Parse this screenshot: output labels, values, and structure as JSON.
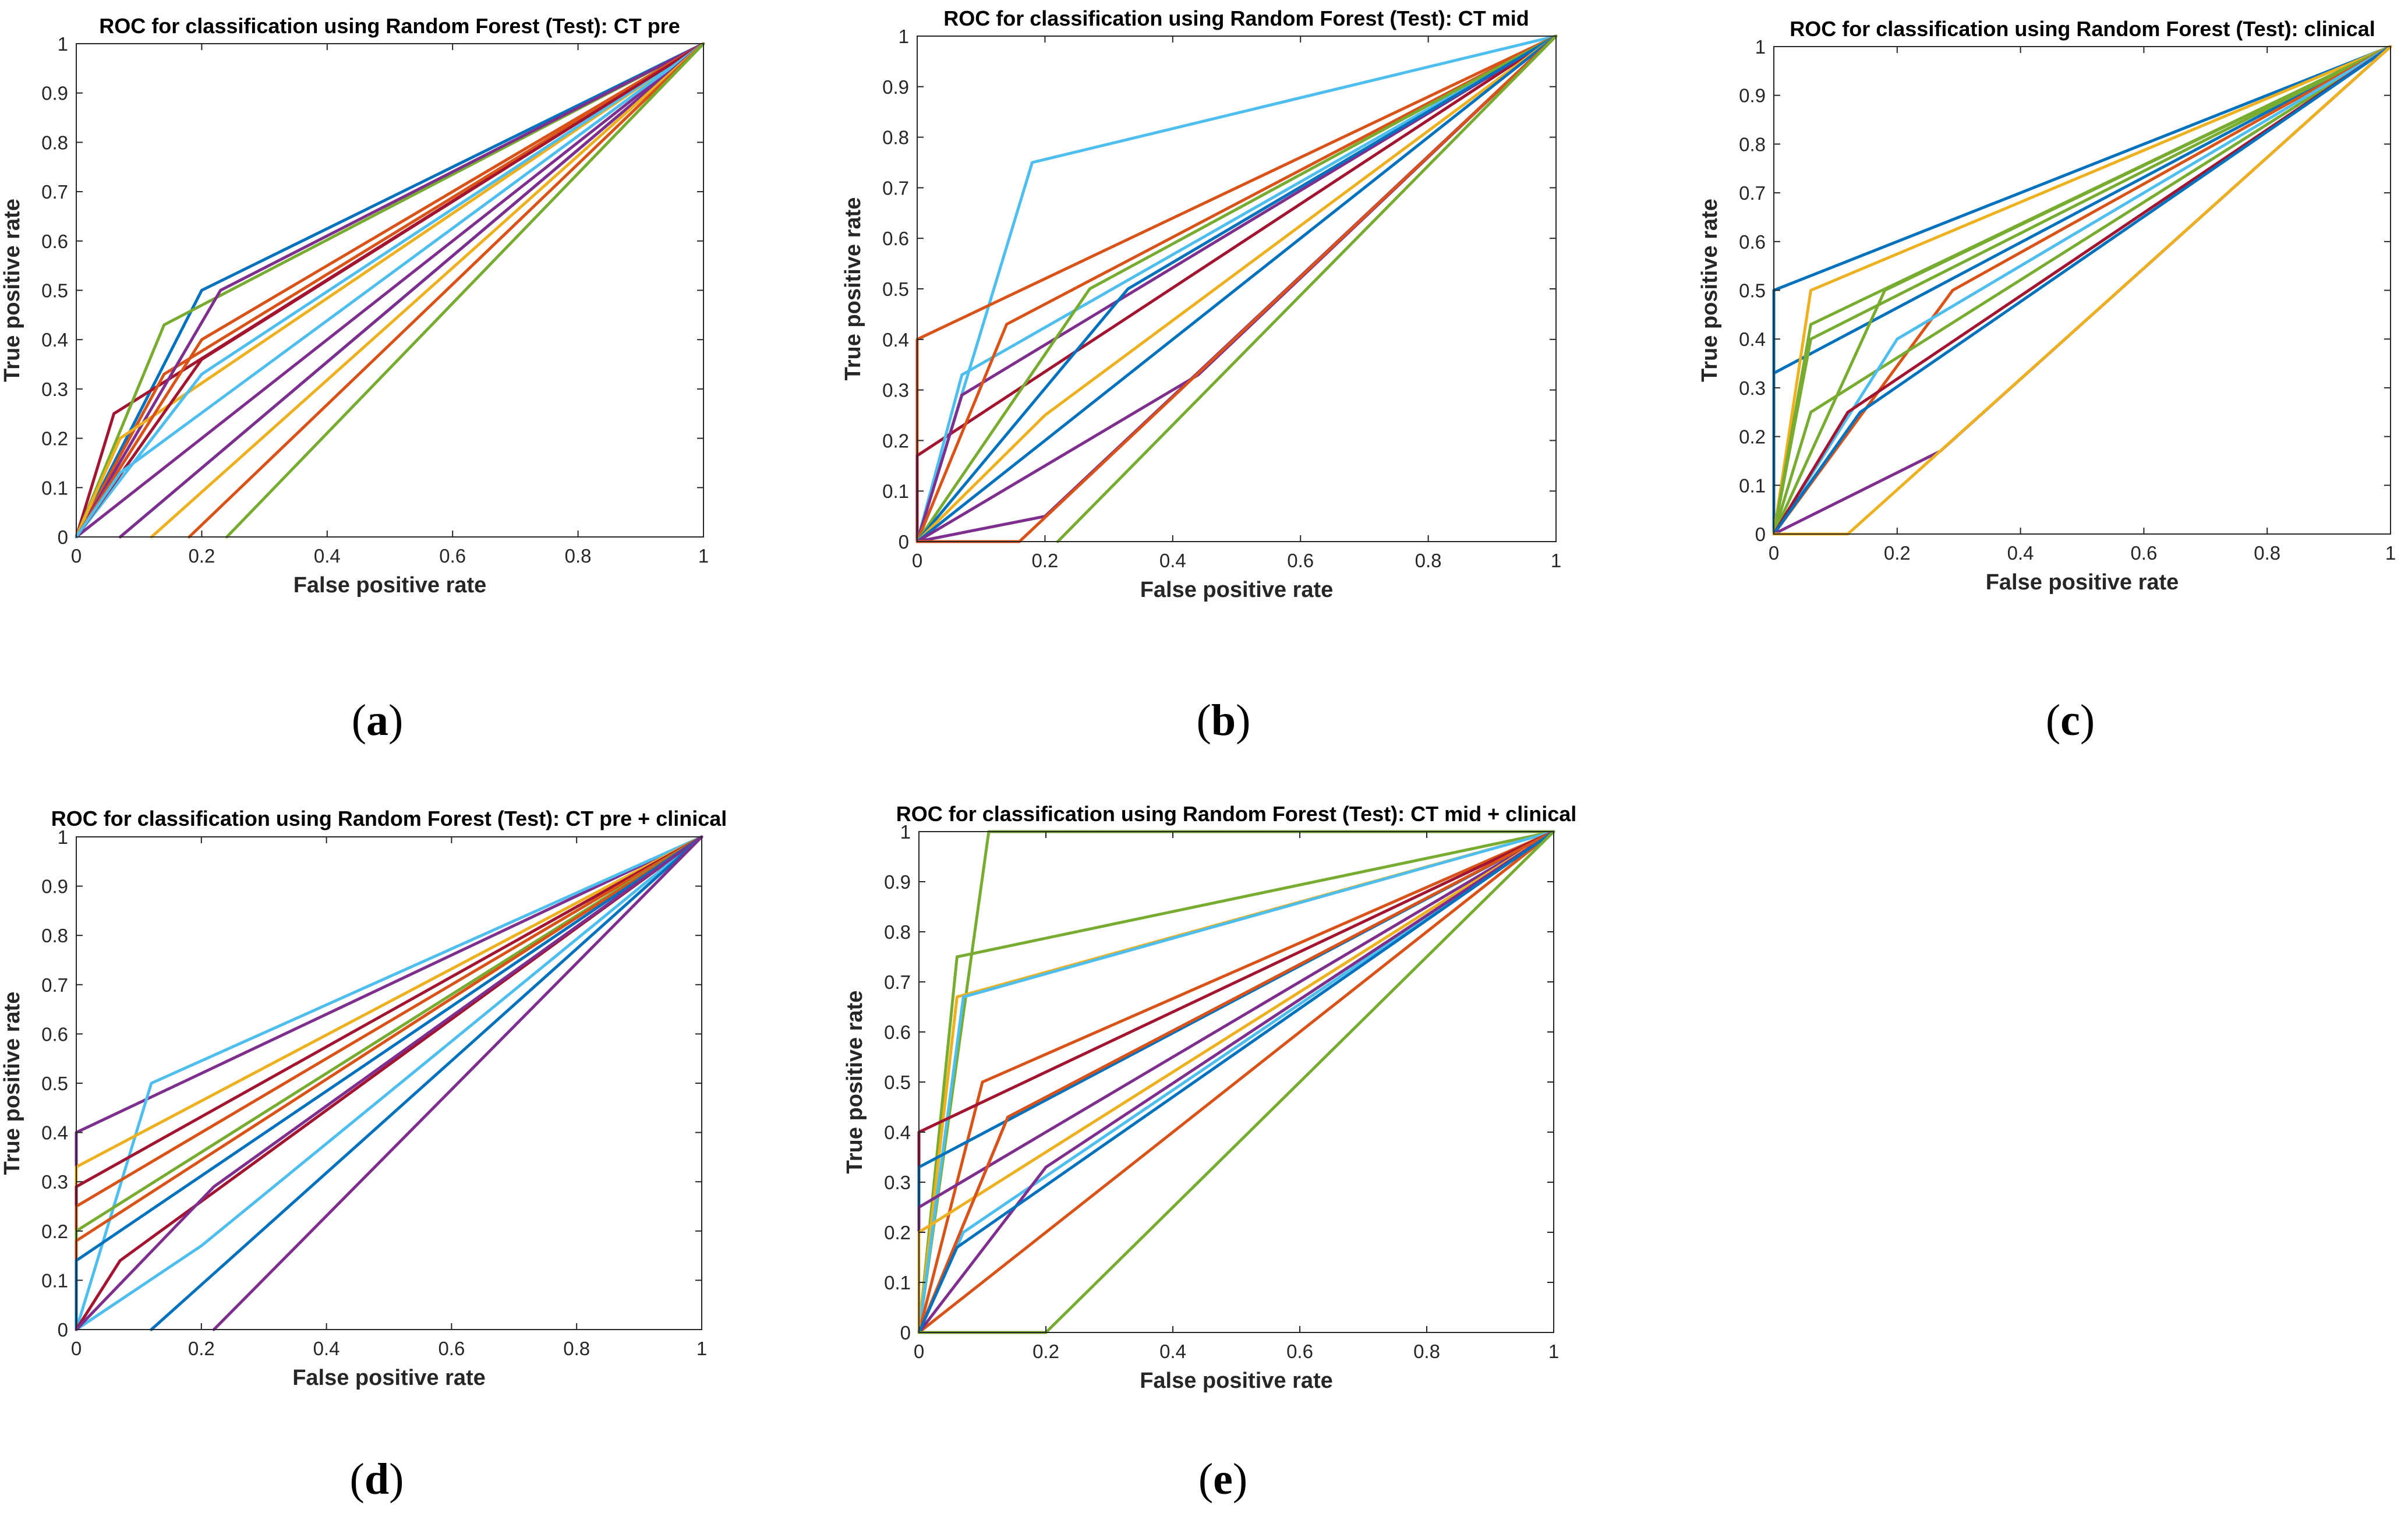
{
  "colors": [
    "#0072BD",
    "#D95319",
    "#EDB120",
    "#7E2F8E",
    "#77AC30",
    "#4DBEEE",
    "#A2142F"
  ],
  "chart_data": [
    {
      "type": "line",
      "title": "ROC for classification using Random Forest (Test): CT pre",
      "xlabel": "False positive rate",
      "ylabel": "True positive rate",
      "xlim": [
        0,
        1
      ],
      "ylim": [
        0,
        1
      ],
      "xticks": [
        "0",
        "0.2",
        "0.4",
        "0.6",
        "0.8",
        "1"
      ],
      "yticks": [
        "0",
        "0.1",
        "0.2",
        "0.3",
        "0.4",
        "0.5",
        "0.6",
        "0.7",
        "0.8",
        "0.9",
        "1"
      ],
      "grid": false,
      "caption": {
        "open": "(",
        "letter": "a",
        "close": ")"
      },
      "series": [
        {
          "color": 0,
          "x": [
            0,
            0.2,
            1
          ],
          "y": [
            0,
            0.5,
            1
          ]
        },
        {
          "color": 6,
          "x": [
            0,
            0.06,
            1
          ],
          "y": [
            0,
            0.25,
            1
          ]
        },
        {
          "color": 4,
          "x": [
            0,
            0.14,
            1
          ],
          "y": [
            0,
            0.43,
            1
          ]
        },
        {
          "color": 1,
          "x": [
            0,
            0.14,
            1
          ],
          "y": [
            0,
            0.33,
            1
          ]
        },
        {
          "color": 3,
          "x": [
            0,
            0.23,
            1
          ],
          "y": [
            0,
            0.5,
            1
          ]
        },
        {
          "color": 2,
          "x": [
            0,
            0.07,
            1
          ],
          "y": [
            0,
            0.2,
            1
          ]
        },
        {
          "color": 5,
          "x": [
            0,
            0.2,
            1
          ],
          "y": [
            0,
            0.33,
            1
          ]
        },
        {
          "color": 1,
          "x": [
            0,
            0.2,
            1
          ],
          "y": [
            0,
            0.4,
            1
          ]
        },
        {
          "color": 3,
          "x": [
            0,
            0.2,
            1
          ],
          "y": [
            0,
            0.2,
            1
          ]
        },
        {
          "color": 6,
          "x": [
            0,
            0.2,
            1
          ],
          "y": [
            0,
            0.36,
            1
          ]
        },
        {
          "color": 5,
          "x": [
            0,
            0.07,
            1
          ],
          "y": [
            0,
            0.13,
            1
          ]
        },
        {
          "color": 0,
          "x": [
            0.07,
            1
          ],
          "y": [
            0,
            1
          ]
        },
        {
          "color": 3,
          "x": [
            0.07,
            1
          ],
          "y": [
            0,
            1
          ]
        },
        {
          "color": 2,
          "x": [
            0.12,
            1
          ],
          "y": [
            0,
            1
          ]
        },
        {
          "color": 1,
          "x": [
            0.18,
            1
          ],
          "y": [
            0,
            1
          ]
        },
        {
          "color": 4,
          "x": [
            0.24,
            1
          ],
          "y": [
            0,
            1
          ]
        }
      ]
    },
    {
      "type": "line",
      "title": "ROC for classification using Random Forest (Test): CT mid",
      "xlabel": "False positive rate",
      "ylabel": "True positive rate",
      "xlim": [
        0,
        1
      ],
      "ylim": [
        0,
        1
      ],
      "xticks": [
        "0",
        "0.2",
        "0.4",
        "0.6",
        "0.8",
        "1"
      ],
      "yticks": [
        "0",
        "0.1",
        "0.2",
        "0.3",
        "0.4",
        "0.5",
        "0.6",
        "0.7",
        "0.8",
        "0.9",
        "1"
      ],
      "grid": false,
      "caption": {
        "open": "(",
        "letter": "b",
        "close": ")"
      },
      "series": [
        {
          "color": 5,
          "x": [
            0,
            0.18,
            1
          ],
          "y": [
            0,
            0.75,
            1
          ]
        },
        {
          "color": 1,
          "x": [
            0,
            0,
            1
          ],
          "y": [
            0,
            0.4,
            1
          ]
        },
        {
          "color": 6,
          "x": [
            0,
            0,
            1
          ],
          "y": [
            0,
            0.17,
            1
          ]
        },
        {
          "color": 5,
          "x": [
            0,
            0.07,
            1
          ],
          "y": [
            0,
            0.33,
            1
          ]
        },
        {
          "color": 3,
          "x": [
            0,
            0.07,
            1
          ],
          "y": [
            0,
            0.29,
            1
          ]
        },
        {
          "color": 1,
          "x": [
            0,
            0.14,
            1
          ],
          "y": [
            0,
            0.43,
            1
          ]
        },
        {
          "color": 4,
          "x": [
            0,
            0.27,
            1
          ],
          "y": [
            0,
            0.5,
            1
          ]
        },
        {
          "color": 0,
          "x": [
            0,
            0.33,
            1
          ],
          "y": [
            0,
            0.5,
            1
          ]
        },
        {
          "color": 2,
          "x": [
            0,
            0.2,
            1
          ],
          "y": [
            0,
            0.25,
            1
          ]
        },
        {
          "color": 0,
          "x": [
            0,
            0.2,
            1
          ],
          "y": [
            0,
            0.2,
            1
          ]
        },
        {
          "color": 3,
          "x": [
            0,
            0.44,
            1
          ],
          "y": [
            0,
            0.33,
            1
          ]
        },
        {
          "color": 3,
          "x": [
            0,
            0.2,
            1
          ],
          "y": [
            0,
            0.05,
            1
          ]
        },
        {
          "color": 1,
          "x": [
            0,
            0.16,
            1
          ],
          "y": [
            0,
            0,
            1
          ]
        },
        {
          "color": 4,
          "x": [
            0.22,
            1
          ],
          "y": [
            0,
            1
          ]
        }
      ]
    },
    {
      "type": "line",
      "title": "ROC for classification using Random Forest (Test): clinical",
      "xlabel": "False positive rate",
      "ylabel": "True positive rate",
      "xlim": [
        0,
        1
      ],
      "ylim": [
        0,
        1
      ],
      "xticks": [
        "0",
        "0.2",
        "0.4",
        "0.6",
        "0.8",
        "1"
      ],
      "yticks": [
        "0",
        "0.1",
        "0.2",
        "0.3",
        "0.4",
        "0.5",
        "0.6",
        "0.7",
        "0.8",
        "0.9",
        "1"
      ],
      "grid": false,
      "caption": {
        "open": "(",
        "letter": "c",
        "close": ")"
      },
      "series": [
        {
          "color": 0,
          "x": [
            0,
            0,
            1
          ],
          "y": [
            0,
            0.5,
            1
          ]
        },
        {
          "color": 0,
          "x": [
            0,
            0,
            1
          ],
          "y": [
            0,
            0.33,
            1
          ]
        },
        {
          "color": 2,
          "x": [
            0,
            0.06,
            1
          ],
          "y": [
            0,
            0.5,
            1
          ]
        },
        {
          "color": 4,
          "x": [
            0,
            0.06,
            1
          ],
          "y": [
            0,
            0.43,
            1
          ]
        },
        {
          "color": 4,
          "x": [
            0,
            0.06,
            1
          ],
          "y": [
            0,
            0.4,
            1
          ]
        },
        {
          "color": 4,
          "x": [
            0,
            0.18,
            1
          ],
          "y": [
            0,
            0.5,
            1
          ]
        },
        {
          "color": 1,
          "x": [
            0,
            0.29,
            1
          ],
          "y": [
            0,
            0.5,
            1
          ]
        },
        {
          "color": 4,
          "x": [
            0,
            0.06,
            1
          ],
          "y": [
            0,
            0.25,
            1
          ]
        },
        {
          "color": 5,
          "x": [
            0,
            0.2,
            1
          ],
          "y": [
            0,
            0.4,
            1
          ]
        },
        {
          "color": 6,
          "x": [
            0,
            0.12,
            1
          ],
          "y": [
            0,
            0.25,
            1
          ]
        },
        {
          "color": 0,
          "x": [
            0,
            0.14,
            1
          ],
          "y": [
            0,
            0.25,
            1
          ]
        },
        {
          "color": 3,
          "x": [
            0,
            0.27,
            1
          ],
          "y": [
            0,
            0.17,
            1
          ]
        },
        {
          "color": 2,
          "x": [
            0,
            0.12,
            1
          ],
          "y": [
            0,
            0,
            1
          ]
        }
      ]
    },
    {
      "type": "line",
      "title": "ROC for classification using Random Forest (Test): CT pre + clinical",
      "xlabel": "False positive rate",
      "ylabel": "True positive rate",
      "xlim": [
        0,
        1
      ],
      "ylim": [
        0,
        1
      ],
      "xticks": [
        "0",
        "0.2",
        "0.4",
        "0.6",
        "0.8",
        "1"
      ],
      "yticks": [
        "0",
        "0.1",
        "0.2",
        "0.3",
        "0.4",
        "0.5",
        "0.6",
        "0.7",
        "0.8",
        "0.9",
        "1"
      ],
      "grid": false,
      "caption": {
        "open": "(",
        "letter": "d",
        "close": ")"
      },
      "series": [
        {
          "color": 3,
          "x": [
            0,
            0,
            1
          ],
          "y": [
            0,
            0.4,
            1
          ]
        },
        {
          "color": 5,
          "x": [
            0,
            0.12,
            1
          ],
          "y": [
            0,
            0.5,
            1
          ]
        },
        {
          "color": 2,
          "x": [
            0,
            0,
            1
          ],
          "y": [
            0,
            0.33,
            1
          ]
        },
        {
          "color": 6,
          "x": [
            0,
            0,
            1
          ],
          "y": [
            0,
            0.29,
            1
          ]
        },
        {
          "color": 1,
          "x": [
            0,
            0,
            1
          ],
          "y": [
            0,
            0.25,
            1
          ]
        },
        {
          "color": 4,
          "x": [
            0,
            0,
            1
          ],
          "y": [
            0,
            0.2,
            1
          ]
        },
        {
          "color": 1,
          "x": [
            0,
            0,
            1
          ],
          "y": [
            0,
            0.18,
            1
          ]
        },
        {
          "color": 0,
          "x": [
            0,
            0,
            1
          ],
          "y": [
            0,
            0.14,
            1
          ]
        },
        {
          "color": 6,
          "x": [
            0,
            0.07,
            1
          ],
          "y": [
            0,
            0.14,
            1
          ]
        },
        {
          "color": 5,
          "x": [
            0,
            0.2,
            1
          ],
          "y": [
            0,
            0.17,
            1
          ]
        },
        {
          "color": 3,
          "x": [
            0,
            0.22,
            1
          ],
          "y": [
            0,
            0.29,
            1
          ]
        },
        {
          "color": 0,
          "x": [
            0.12,
            1
          ],
          "y": [
            0,
            1
          ]
        },
        {
          "color": 3,
          "x": [
            0.22,
            1
          ],
          "y": [
            0,
            1
          ]
        }
      ]
    },
    {
      "type": "line",
      "title": "ROC for classification using Random Forest (Test): CT mid + clinical",
      "xlabel": "False positive rate",
      "ylabel": "True positive rate",
      "xlim": [
        0,
        1
      ],
      "ylim": [
        0,
        1
      ],
      "xticks": [
        "0",
        "0.2",
        "0.4",
        "0.6",
        "0.8",
        "1"
      ],
      "yticks": [
        "0",
        "0.1",
        "0.2",
        "0.3",
        "0.4",
        "0.5",
        "0.6",
        "0.7",
        "0.8",
        "0.9",
        "1"
      ],
      "grid": false,
      "caption": {
        "open": "(",
        "letter": "e",
        "close": ")"
      },
      "series": [
        {
          "color": 4,
          "x": [
            0,
            0.11,
            1
          ],
          "y": [
            0,
            1,
            1
          ]
        },
        {
          "color": 4,
          "x": [
            0,
            0.06,
            1
          ],
          "y": [
            0,
            0.75,
            1
          ]
        },
        {
          "color": 2,
          "x": [
            0,
            0.06,
            1
          ],
          "y": [
            0,
            0.67,
            1
          ]
        },
        {
          "color": 5,
          "x": [
            0,
            0.07,
            1
          ],
          "y": [
            0,
            0.67,
            1
          ]
        },
        {
          "color": 1,
          "x": [
            0,
            0.1,
            1
          ],
          "y": [
            0,
            0.5,
            1
          ]
        },
        {
          "color": 6,
          "x": [
            0,
            0,
            1
          ],
          "y": [
            0,
            0.4,
            1
          ]
        },
        {
          "color": 3,
          "x": [
            0,
            0.14,
            1
          ],
          "y": [
            0,
            0.43,
            1
          ]
        },
        {
          "color": 0,
          "x": [
            0,
            0,
            1
          ],
          "y": [
            0,
            0.33,
            1
          ]
        },
        {
          "color": 3,
          "x": [
            0,
            0,
            1
          ],
          "y": [
            0,
            0.25,
            1
          ]
        },
        {
          "color": 2,
          "x": [
            0,
            0,
            1
          ],
          "y": [
            0,
            0.2,
            1
          ]
        },
        {
          "color": 5,
          "x": [
            0,
            0.07,
            1
          ],
          "y": [
            0,
            0.2,
            1
          ]
        },
        {
          "color": 1,
          "x": [
            0,
            0.2,
            1
          ],
          "y": [
            0,
            0.2,
            1
          ]
        },
        {
          "color": 3,
          "x": [
            0,
            0.2,
            1
          ],
          "y": [
            0,
            0.33,
            1
          ]
        },
        {
          "color": 1,
          "x": [
            0,
            0.14,
            1
          ],
          "y": [
            0,
            0.43,
            1
          ]
        },
        {
          "color": 0,
          "x": [
            0,
            0.06,
            1
          ],
          "y": [
            0,
            0.17,
            1
          ]
        },
        {
          "color": 4,
          "x": [
            0,
            0.2,
            1
          ],
          "y": [
            0,
            0,
            1
          ]
        }
      ]
    }
  ]
}
